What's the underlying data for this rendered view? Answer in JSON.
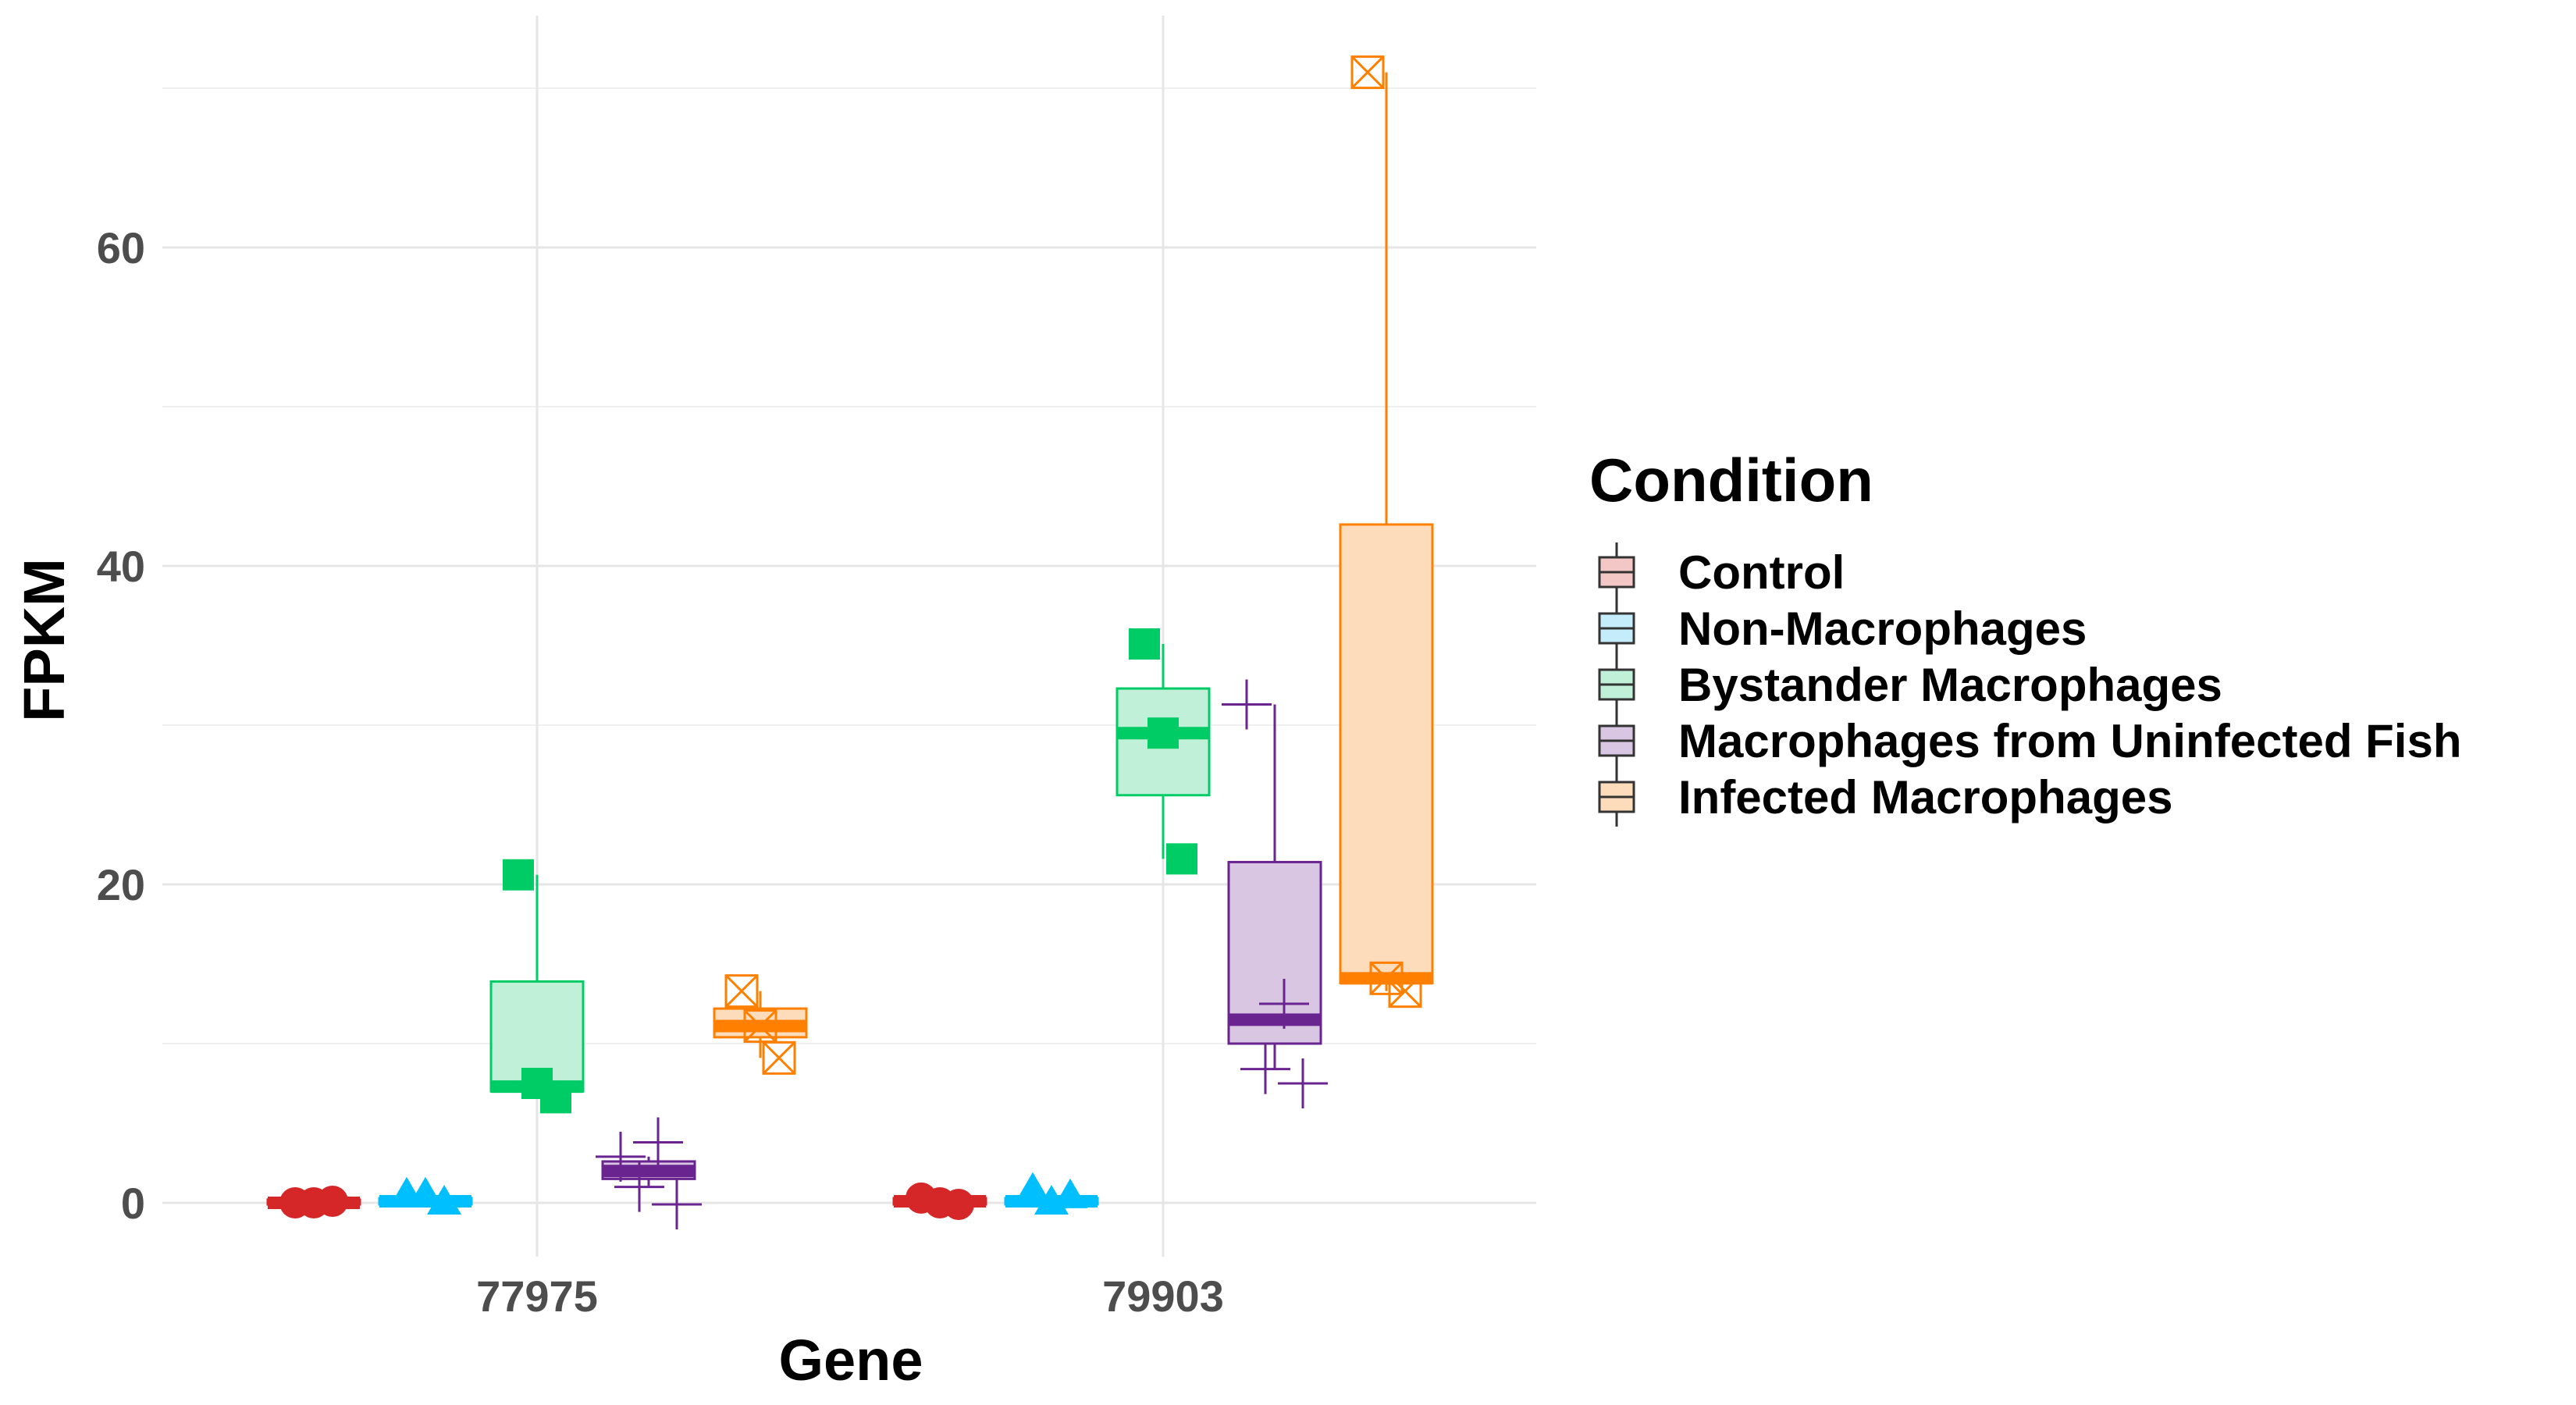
{
  "chart_data": {
    "type": "boxplot",
    "xlabel": "Gene",
    "ylabel": "FPKM",
    "ylim": [
      -3,
      71.5
    ],
    "y_ticks": [
      0,
      20,
      40,
      60
    ],
    "grid": true,
    "legend_title": "Condition",
    "legend_position": "right",
    "categories": [
      "77975",
      "79903"
    ],
    "series": [
      {
        "name": "Control",
        "color": "#d62728",
        "fill": "#f4c7c7",
        "marker": "circle",
        "boxes": [
          {
            "q1": -0.1,
            "median": 0.0,
            "q3": 0.2,
            "lower": -0.1,
            "upper": 0.2,
            "points": [
              0.0,
              0.0,
              0.1
            ]
          },
          {
            "q1": -0.1,
            "median": 0.1,
            "q3": 0.3,
            "lower": -0.1,
            "upper": 0.3,
            "points": [
              0.3,
              0.0,
              -0.1
            ]
          }
        ]
      },
      {
        "name": "Non-Macrophages",
        "color": "#00bfff",
        "fill": "#c4ecfb",
        "marker": "triangle",
        "boxes": [
          {
            "q1": -0.1,
            "median": 0.1,
            "q3": 0.3,
            "lower": -0.1,
            "upper": 0.3,
            "points": [
              0.5,
              0.5,
              0.0
            ]
          },
          {
            "q1": -0.1,
            "median": 0.1,
            "q3": 0.3,
            "lower": -0.1,
            "upper": 0.3,
            "points": [
              0.8,
              0.0,
              0.4
            ]
          }
        ]
      },
      {
        "name": "Bystander Macrophages",
        "color": "#00cc66",
        "fill": "#c0f0d8",
        "marker": "square",
        "boxes": [
          {
            "q1": 7.0,
            "median": 7.3,
            "q3": 13.9,
            "lower": 6.6,
            "upper": 20.6,
            "points": [
              20.6,
              7.5,
              6.6
            ]
          },
          {
            "q1": 25.6,
            "median": 29.5,
            "q3": 32.3,
            "lower": 21.6,
            "upper": 35.1,
            "points": [
              35.1,
              29.5,
              21.6
            ]
          }
        ]
      },
      {
        "name": "Macrophages from Uninfected Fish",
        "color": "#6a2490",
        "fill": "#d9c6e3",
        "marker": "plus",
        "boxes": [
          {
            "q1": 1.5,
            "median": 2.0,
            "q3": 2.6,
            "lower": 1.0,
            "upper": 2.9,
            "points": [
              2.9,
              1.0,
              3.8,
              -0.1
            ]
          },
          {
            "q1": 10.0,
            "median": 11.5,
            "q3": 21.4,
            "lower": 8.4,
            "upper": 31.3,
            "points": [
              31.3,
              8.4,
              12.5,
              7.5
            ]
          }
        ]
      },
      {
        "name": "Infected Macrophages",
        "color": "#ff8000",
        "fill": "#fddcbc",
        "marker": "boxed-x",
        "boxes": [
          {
            "q1": 10.4,
            "median": 11.1,
            "q3": 12.2,
            "lower": 9.1,
            "upper": 13.3,
            "points": [
              13.3,
              11.1,
              9.1
            ]
          },
          {
            "q1": 13.8,
            "median": 14.1,
            "q3": 42.6,
            "lower": 13.3,
            "upper": 71.0,
            "points": [
              71.0,
              14.1,
              13.3
            ]
          }
        ]
      }
    ]
  }
}
